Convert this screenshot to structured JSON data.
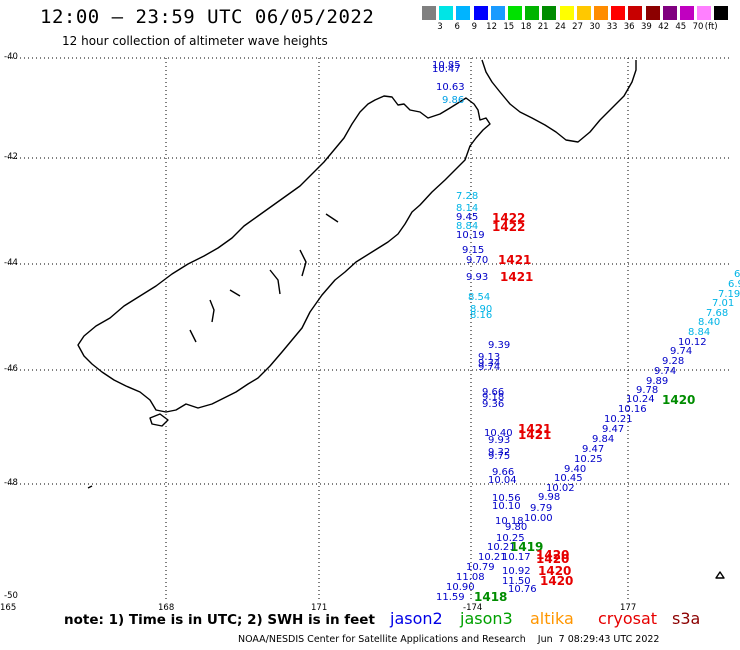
{
  "header": {
    "title": "12:00 – 23:59 UTC 06/05/2022",
    "subtitle": "12 hour collection of altimeter wave heights"
  },
  "scale": {
    "unit": "(ft)",
    "colors": [
      "#808080",
      "#00e5e5",
      "#00b4ff",
      "#0000ff",
      "#1a9bff",
      "#00e100",
      "#00b400",
      "#008c00",
      "#ffff00",
      "#ffc800",
      "#ff8c00",
      "#ff0000",
      "#c80000",
      "#8c0000",
      "#800080",
      "#c000c0",
      "#ff80ff",
      "#000000"
    ],
    "labels": [
      "3",
      "6",
      "9",
      "12",
      "15",
      "18",
      "21",
      "24",
      "27",
      "30",
      "33",
      "36",
      "39",
      "42",
      "45",
      "70"
    ]
  },
  "axes": {
    "lat_labels": [
      "-40",
      "-42",
      "-44",
      "-46",
      "-48",
      "-50"
    ],
    "lon_labels": [
      "165",
      "168",
      "171",
      "-174",
      "177"
    ]
  },
  "measurements": [
    {
      "text": "10.85",
      "color": "#0000c8"
    },
    {
      "text": "10.47",
      "color": "#0000c8"
    },
    {
      "text": "10.63",
      "color": "#0000c8"
    },
    {
      "text": "9.86",
      "color": "#00a0e6"
    },
    {
      "text": "7.28",
      "color": "#00b4e6"
    },
    {
      "text": "8.14",
      "color": "#00b4e6"
    },
    {
      "text": "9.45",
      "color": "#0000c8"
    },
    {
      "text": "8.84",
      "color": "#00b4e6"
    },
    {
      "text": "10.19",
      "color": "#0000c8"
    },
    {
      "text": "9.15",
      "color": "#0000c8"
    },
    {
      "text": "9.70",
      "color": "#0000c8"
    },
    {
      "text": "9.93",
      "color": "#0000c8"
    },
    {
      "text": "8.54",
      "color": "#00b4e6"
    },
    {
      "text": "8.90",
      "color": "#00b4e6"
    },
    {
      "text": "8.16",
      "color": "#00b4e6"
    },
    {
      "text": "9.39",
      "color": "#0000c8"
    },
    {
      "text": "9.13",
      "color": "#0000c8"
    },
    {
      "text": "9.34",
      "color": "#0000c8"
    },
    {
      "text": "9.74",
      "color": "#0000c8"
    },
    {
      "text": "9.66",
      "color": "#0000c8"
    },
    {
      "text": "9.18",
      "color": "#0000c8"
    },
    {
      "text": "9.36",
      "color": "#0000c8"
    },
    {
      "text": "10.40",
      "color": "#0000c8"
    },
    {
      "text": "9.93",
      "color": "#0000c8"
    },
    {
      "text": "9.32",
      "color": "#0000c8"
    },
    {
      "text": "9.75",
      "color": "#0000c8"
    },
    {
      "text": "9.66",
      "color": "#0000c8"
    },
    {
      "text": "10.04",
      "color": "#0000c8"
    },
    {
      "text": "10.56",
      "color": "#0000c8"
    },
    {
      "text": "10.10",
      "color": "#0000c8"
    },
    {
      "text": "10.18",
      "color": "#0000c8"
    },
    {
      "text": "9.80",
      "color": "#0000c8"
    },
    {
      "text": "10.25",
      "color": "#0000c8"
    },
    {
      "text": "10.21",
      "color": "#0000c8"
    },
    {
      "text": "10.21",
      "color": "#0000c8"
    },
    {
      "text": "10.17",
      "color": "#0000c8"
    },
    {
      "text": "10.79",
      "color": "#0000c8"
    },
    {
      "text": "10.92",
      "color": "#0000c8"
    },
    {
      "text": "11.08",
      "color": "#0000c8"
    },
    {
      "text": "11.50",
      "color": "#0000c8"
    },
    {
      "text": "10.90",
      "color": "#0000c8"
    },
    {
      "text": "10.76",
      "color": "#0000c8"
    },
    {
      "text": "11.59",
      "color": "#0000c8"
    },
    {
      "text": "6",
      "color": "#00b4e6"
    },
    {
      "text": "6.9",
      "color": "#00b4e6"
    },
    {
      "text": "7.19",
      "color": "#00b4e6"
    },
    {
      "text": "7.01",
      "color": "#00b4e6"
    },
    {
      "text": "7.68",
      "color": "#00b4e6"
    },
    {
      "text": "8.40",
      "color": "#00b4e6"
    },
    {
      "text": "8.84",
      "color": "#00b4e6"
    },
    {
      "text": "10.12",
      "color": "#0000c8"
    },
    {
      "text": "9.74",
      "color": "#0000c8"
    },
    {
      "text": "9.28",
      "color": "#0000c8"
    },
    {
      "text": "9.74",
      "color": "#0000c8"
    },
    {
      "text": "9.89",
      "color": "#0000c8"
    },
    {
      "text": "9.78",
      "color": "#0000c8"
    },
    {
      "text": "10.24",
      "color": "#0000c8"
    },
    {
      "text": "10.16",
      "color": "#0000c8"
    },
    {
      "text": "10.21",
      "color": "#0000c8"
    },
    {
      "text": "9.47",
      "color": "#0000c8"
    },
    {
      "text": "9.84",
      "color": "#0000c8"
    },
    {
      "text": "9.47",
      "color": "#0000c8"
    },
    {
      "text": "10.25",
      "color": "#0000c8"
    },
    {
      "text": "9.40",
      "color": "#0000c8"
    },
    {
      "text": "10.45",
      "color": "#0000c8"
    },
    {
      "text": "10.02",
      "color": "#0000c8"
    },
    {
      "text": "9.98",
      "color": "#0000c8"
    },
    {
      "text": "9.79",
      "color": "#0000c8"
    },
    {
      "text": "10.00",
      "color": "#0000c8"
    }
  ],
  "time_labels": [
    {
      "text": "1422",
      "color": "#e60000"
    },
    {
      "text": "1422",
      "color": "#e60000"
    },
    {
      "text": "1421",
      "color": "#e60000"
    },
    {
      "text": "1421",
      "color": "#e60000"
    },
    {
      "text": "1421",
      "color": "#e60000"
    },
    {
      "text": "1421",
      "color": "#e60000"
    },
    {
      "text": "1420",
      "color": "#008c00"
    },
    {
      "text": "1419",
      "color": "#008c00"
    },
    {
      "text": "1420",
      "color": "#e60000"
    },
    {
      "text": "1420",
      "color": "#e60000"
    },
    {
      "text": "1420",
      "color": "#e60000"
    },
    {
      "text": "1420",
      "color": "#e60000"
    },
    {
      "text": "1418",
      "color": "#008c00"
    }
  ],
  "legend": {
    "note": "note: 1) Time is in UTC; 2) SWH is in feet",
    "satellites": [
      {
        "name": "jason2",
        "color": "#0000e6"
      },
      {
        "name": "jason3",
        "color": "#00a000"
      },
      {
        "name": "altika",
        "color": "#ff9600"
      },
      {
        "name": "cryosat",
        "color": "#e60000"
      },
      {
        "name": "s3a",
        "color": "#8c0000"
      }
    ]
  },
  "footer": {
    "text": "NOAA/NESDIS Center for Satellite Applications and Research    Jun  7 08:29:43 UTC 2022"
  }
}
